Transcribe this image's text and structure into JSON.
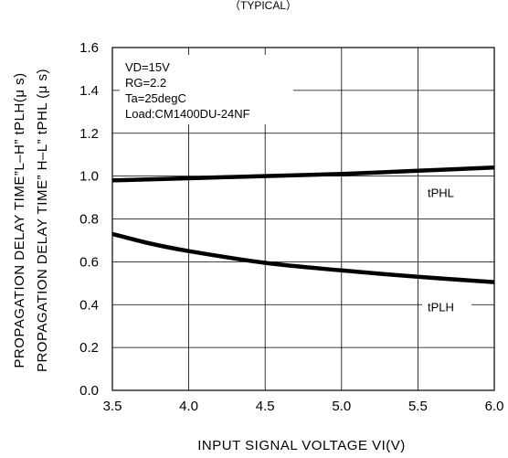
{
  "header_text": "（TYPICAL）",
  "chart_data": {
    "type": "line",
    "xlabel": "INPUT SIGNAL VOLTAGE  VI(V)",
    "ylabel_lines": [
      "PROPAGATION DELAY TIME”L–H” tPLH(μ s)",
      "PROPAGATION DELAY TIME” H–L” tPHL (μ s)"
    ],
    "xlim": [
      3.5,
      6.0
    ],
    "ylim": [
      0.0,
      1.6
    ],
    "x_ticks": [
      "3.5",
      "4.0",
      "4.5",
      "5.0",
      "5.5",
      "6.0"
    ],
    "y_ticks": [
      "0.0",
      "0.2",
      "0.4",
      "0.6",
      "0.8",
      "1.0",
      "1.2",
      "1.4",
      "1.6"
    ],
    "grid": true,
    "conditions": [
      "VD=15V",
      "RG=2.2",
      "Ta=25degC",
      "Load:CM1400DU-24NF"
    ],
    "series": [
      {
        "name": "tPHL",
        "x": [
          3.5,
          4.0,
          4.5,
          5.0,
          5.5,
          6.0
        ],
        "values": [
          0.98,
          0.99,
          1.0,
          1.01,
          1.025,
          1.04
        ]
      },
      {
        "name": "tPLH",
        "x": [
          3.5,
          3.75,
          4.0,
          4.5,
          5.0,
          5.5,
          6.0
        ],
        "values": [
          0.73,
          0.685,
          0.65,
          0.595,
          0.56,
          0.53,
          0.505
        ]
      }
    ]
  }
}
